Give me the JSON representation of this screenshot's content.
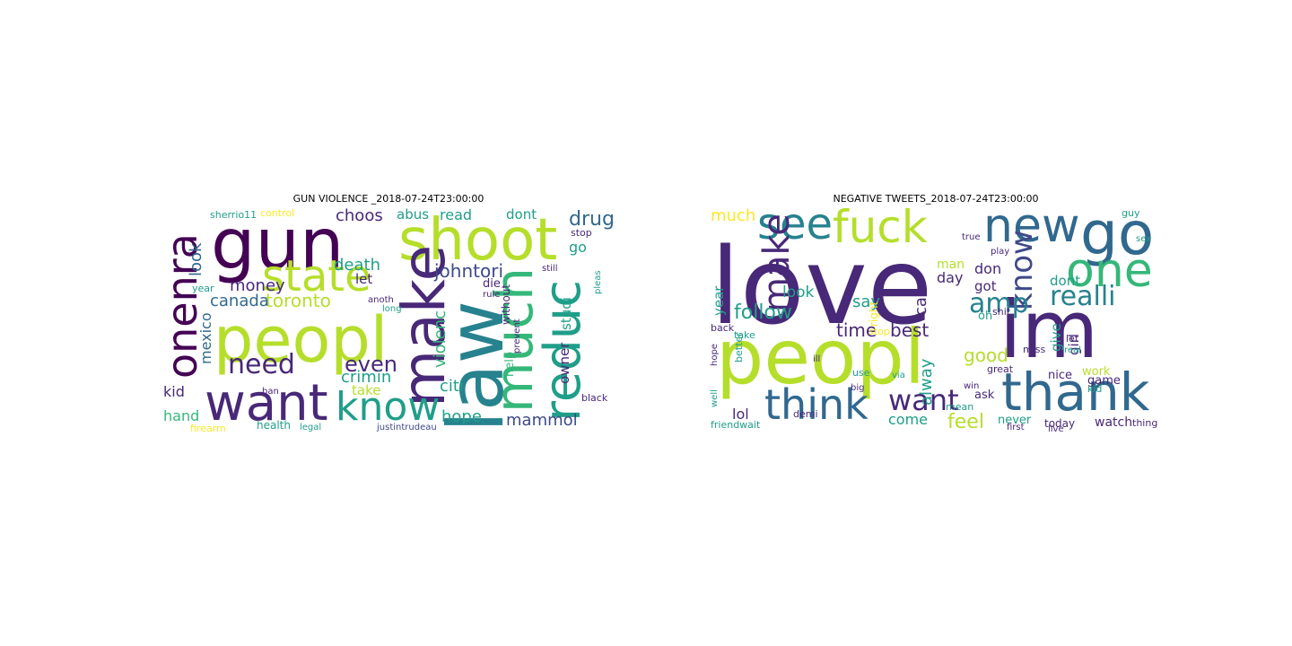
{
  "palette": {
    "dp": "#440154",
    "ip": "#482878",
    "ib": "#3e4a89",
    "sb": "#31688e",
    "tb": "#26828e",
    "tg": "#1f9e89",
    "gr": "#35b779",
    "lg": "#6ece58",
    "yg": "#b5de2b",
    "ye": "#fde725"
  },
  "figures": [
    {
      "title": "GUN VIOLENCE _2018-07-24T23:00:00",
      "words": [
        {
          "t": "gun",
          "c": "dp"
        },
        {
          "t": "shoot",
          "c": "yg"
        },
        {
          "t": "law",
          "c": "tb"
        },
        {
          "t": "peopl",
          "c": "yg"
        },
        {
          "t": "state",
          "c": "yg"
        },
        {
          "t": "make",
          "c": "ip"
        },
        {
          "t": "much",
          "c": "gr"
        },
        {
          "t": "reduc",
          "c": "tg"
        },
        {
          "t": "want",
          "c": "ip"
        },
        {
          "t": "know",
          "c": "tg"
        },
        {
          "t": "onenra",
          "c": "dp"
        },
        {
          "t": "need",
          "c": "ip"
        },
        {
          "t": "even",
          "c": "ip"
        },
        {
          "t": "toronto",
          "c": "yg"
        },
        {
          "t": "johntori",
          "c": "ib"
        },
        {
          "t": "drug",
          "c": "sb"
        },
        {
          "t": "money",
          "c": "ip"
        },
        {
          "t": "death",
          "c": "tg"
        },
        {
          "t": "choos",
          "c": "ip"
        },
        {
          "t": "crimin",
          "c": "tg"
        },
        {
          "t": "canada",
          "c": "sb"
        },
        {
          "t": "violenc",
          "c": "gr"
        },
        {
          "t": "citi",
          "c": "tg"
        },
        {
          "t": "mammol",
          "c": "ib"
        },
        {
          "t": "hope",
          "c": "tg"
        },
        {
          "t": "look",
          "c": "sb"
        },
        {
          "t": "mexico",
          "c": "sb"
        },
        {
          "t": "kid",
          "c": "ip"
        },
        {
          "t": "hand",
          "c": "gr"
        },
        {
          "t": "take",
          "c": "yg"
        },
        {
          "t": "read",
          "c": "tg"
        },
        {
          "t": "abus",
          "c": "tg"
        },
        {
          "t": "dont",
          "c": "tg"
        },
        {
          "t": "let",
          "c": "ip"
        },
        {
          "t": "go",
          "c": "tg"
        },
        {
          "t": "studi",
          "c": "tg"
        },
        {
          "t": "owner",
          "c": "ip"
        },
        {
          "t": "die",
          "c": "ip"
        },
        {
          "t": "help",
          "c": "gr"
        },
        {
          "t": "without",
          "c": "ip"
        },
        {
          "t": "stop",
          "c": "ip"
        },
        {
          "t": "sherrio11",
          "c": "tg"
        },
        {
          "t": "control",
          "c": "ye"
        },
        {
          "t": "health",
          "c": "tg"
        },
        {
          "t": "firearm",
          "c": "ye"
        },
        {
          "t": "black",
          "c": "ip"
        },
        {
          "t": "year",
          "c": "tg"
        },
        {
          "t": "ban",
          "c": "ip"
        },
        {
          "t": "legal",
          "c": "tg"
        },
        {
          "t": "justintrudeau",
          "c": "ib"
        },
        {
          "t": "long",
          "c": "tg"
        },
        {
          "t": "anoth",
          "c": "ip"
        },
        {
          "t": "still",
          "c": "ip"
        },
        {
          "t": "rule",
          "c": "ip"
        },
        {
          "t": "prevent",
          "c": "ip"
        },
        {
          "t": "pleas",
          "c": "tg"
        }
      ]
    },
    {
      "title": "NEGATIVE TWEETS_2018-07-24T23:00:00",
      "words": [
        {
          "t": "love",
          "c": "ip"
        },
        {
          "t": "peopl",
          "c": "yg"
        },
        {
          "t": "im",
          "c": "ip"
        },
        {
          "t": "thank",
          "c": "sb"
        },
        {
          "t": "go",
          "c": "sb"
        },
        {
          "t": "new",
          "c": "sb"
        },
        {
          "t": "one",
          "c": "gr"
        },
        {
          "t": "fuck",
          "c": "yg"
        },
        {
          "t": "see",
          "c": "tb"
        },
        {
          "t": "make",
          "c": "ip"
        },
        {
          "t": "think",
          "c": "sb"
        },
        {
          "t": "realli",
          "c": "tb"
        },
        {
          "t": "know",
          "c": "ib"
        },
        {
          "t": "amp",
          "c": "tb"
        },
        {
          "t": "want",
          "c": "ip"
        },
        {
          "t": "feel",
          "c": "yg"
        },
        {
          "t": "time",
          "c": "ip"
        },
        {
          "t": "best",
          "c": "ip"
        },
        {
          "t": "follow",
          "c": "tg"
        },
        {
          "t": "look",
          "c": "tg"
        },
        {
          "t": "much",
          "c": "ye"
        },
        {
          "t": "say",
          "c": "tg"
        },
        {
          "t": "call",
          "c": "ip"
        },
        {
          "t": "alway",
          "c": "tg"
        },
        {
          "t": "good",
          "c": "yg"
        },
        {
          "t": "day",
          "c": "ip"
        },
        {
          "t": "don",
          "c": "ip"
        },
        {
          "t": "dont",
          "c": "tg"
        },
        {
          "t": "got",
          "c": "ip"
        },
        {
          "t": "give",
          "c": "tg"
        },
        {
          "t": "girl",
          "c": "ip"
        },
        {
          "t": "year",
          "c": "tg"
        },
        {
          "t": "lol",
          "c": "ip"
        },
        {
          "t": "come",
          "c": "tg"
        },
        {
          "t": "watch",
          "c": "ip"
        },
        {
          "t": "man",
          "c": "yg"
        },
        {
          "t": "nice",
          "c": "ip"
        },
        {
          "t": "work",
          "c": "yg"
        },
        {
          "t": "game",
          "c": "ip"
        },
        {
          "t": "right",
          "c": "ye"
        },
        {
          "t": "oh",
          "c": "tg"
        },
        {
          "t": "ask",
          "c": "ip"
        },
        {
          "t": "never",
          "c": "tg"
        },
        {
          "t": "today",
          "c": "ip"
        },
        {
          "t": "thing",
          "c": "ip"
        },
        {
          "t": "friendwait",
          "c": "tg"
        },
        {
          "t": "demi",
          "c": "ip"
        },
        {
          "t": "guy",
          "c": "tg"
        },
        {
          "t": "let",
          "c": "ip"
        },
        {
          "t": "kid",
          "c": "tg"
        },
        {
          "t": "shit",
          "c": "ip"
        },
        {
          "t": "stop",
          "c": "ye"
        },
        {
          "t": "take",
          "c": "tg"
        },
        {
          "t": "back",
          "c": "ip"
        },
        {
          "t": "better",
          "c": "tg"
        },
        {
          "t": "hope",
          "c": "ip"
        },
        {
          "t": "well",
          "c": "tg"
        },
        {
          "t": "great",
          "c": "ip"
        },
        {
          "t": "miss",
          "c": "ip"
        },
        {
          "t": "mean",
          "c": "tg"
        },
        {
          "t": "first",
          "c": "ip"
        },
        {
          "t": "live",
          "c": "ip"
        },
        {
          "t": "real",
          "c": "tg"
        },
        {
          "t": "sex",
          "c": "tg"
        },
        {
          "t": "via",
          "c": "tg"
        },
        {
          "t": "use",
          "c": "tg"
        },
        {
          "t": "ill",
          "c": "ip"
        },
        {
          "t": "big",
          "c": "ip"
        },
        {
          "t": "win",
          "c": "ip"
        },
        {
          "t": "true",
          "c": "ip"
        },
        {
          "t": "play",
          "c": "ip"
        }
      ]
    }
  ]
}
